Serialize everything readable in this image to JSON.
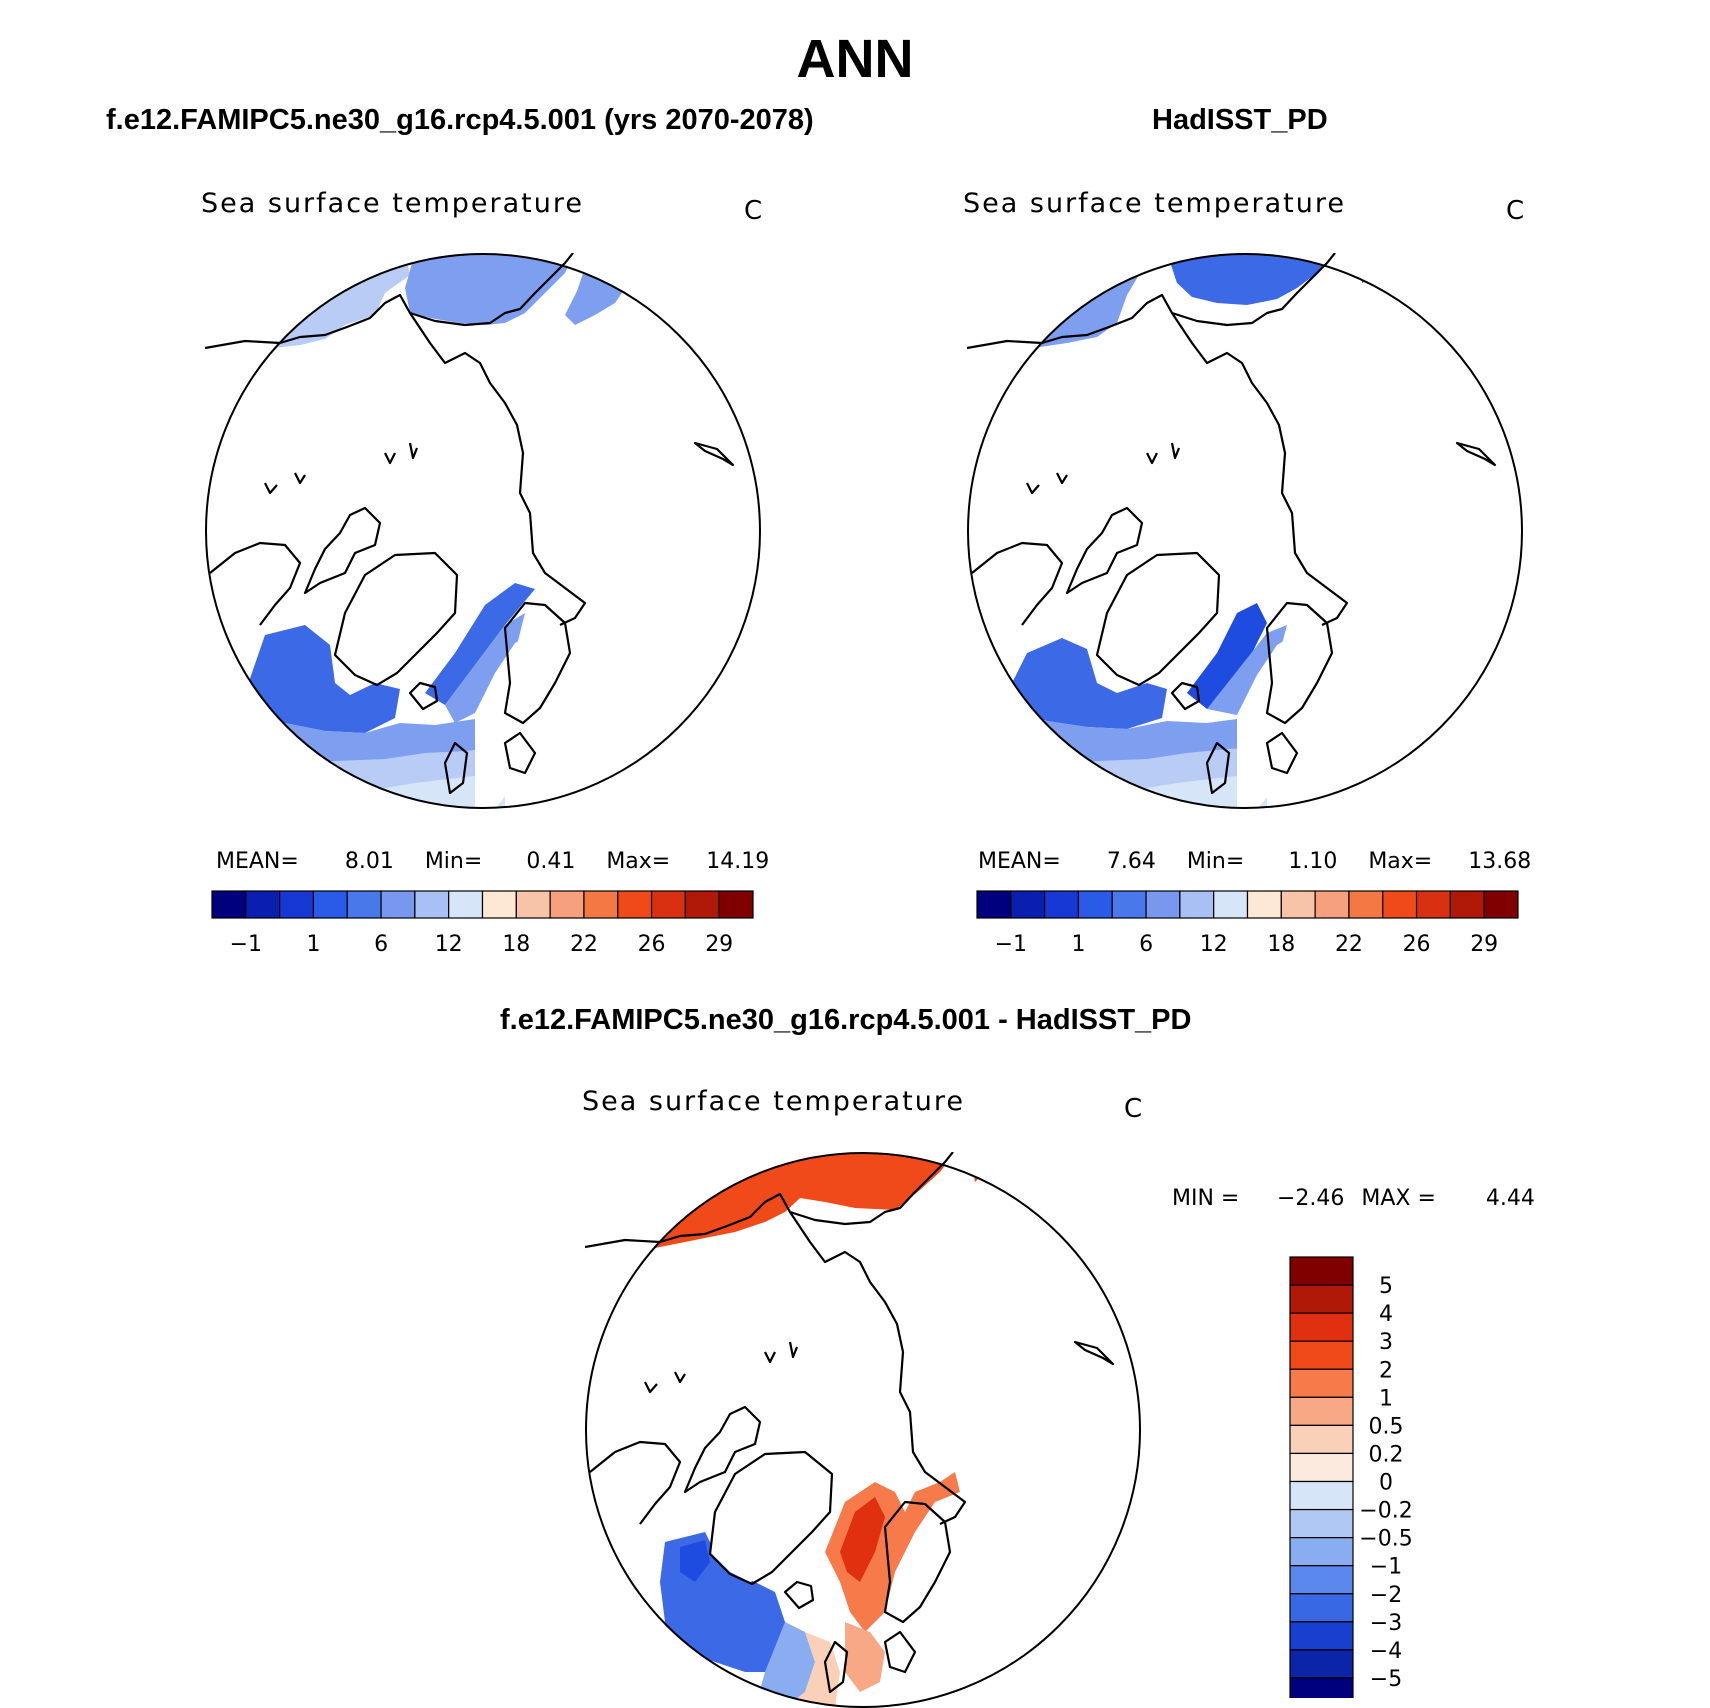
{
  "main_title": "ANN",
  "panels": [
    {
      "title": "f.e12.FAMIPC5.ne30_g16.rcp4.5.001 (yrs 2070-2078)",
      "variable": "Sea surface temperature",
      "units": "C",
      "stats": {
        "mean_label": "MEAN=",
        "mean": "8.01",
        "min_label": "Min=",
        "min": "0.41",
        "max_label": "Max=",
        "max": "14.19"
      }
    },
    {
      "title": "HadISST_PD",
      "variable": "Sea surface temperature",
      "units": "C",
      "stats": {
        "mean_label": "MEAN=",
        "mean": "7.64",
        "min_label": "Min=",
        "min": "1.10",
        "max_label": "Max=",
        "max": "13.68"
      }
    },
    {
      "title": "f.e12.FAMIPC5.ne30_g16.rcp4.5.001 - HadISST_PD",
      "variable": "Sea surface temperature",
      "units": "C",
      "stats": {
        "min_label": "MIN =",
        "min": "−2.46",
        "max_label": "MAX =",
        "max": "4.44"
      }
    }
  ],
  "abs_colorbar": {
    "colors": [
      "#00007f",
      "#0a1fb0",
      "#1838d6",
      "#2a5ae8",
      "#4878ea",
      "#7898f0",
      "#a8c0f5",
      "#d6e6f8",
      "#fde8d6",
      "#f8c4a8",
      "#f6a07e",
      "#f47844",
      "#f04a1a",
      "#d83010",
      "#b01808",
      "#800000"
    ],
    "tick_labels": [
      "−1",
      "1",
      "6",
      "12",
      "18",
      "22",
      "26",
      "29"
    ]
  },
  "diff_colorbar": {
    "colors": [
      "#800000",
      "#b01808",
      "#e03010",
      "#f04a1a",
      "#f67a4a",
      "#f8a884",
      "#fbd0b8",
      "#fdeade",
      "#d6e6f8",
      "#b0c8f4",
      "#8aacf0",
      "#5a88ec",
      "#3868e4",
      "#1840d0",
      "#0c24a8",
      "#00007f"
    ],
    "tick_labels": [
      "5",
      "4",
      "3",
      "2",
      "1",
      "0.5",
      "0.2",
      "0",
      "−0.2",
      "−0.5",
      "−1",
      "−2",
      "−3",
      "−4",
      "−5"
    ]
  }
}
